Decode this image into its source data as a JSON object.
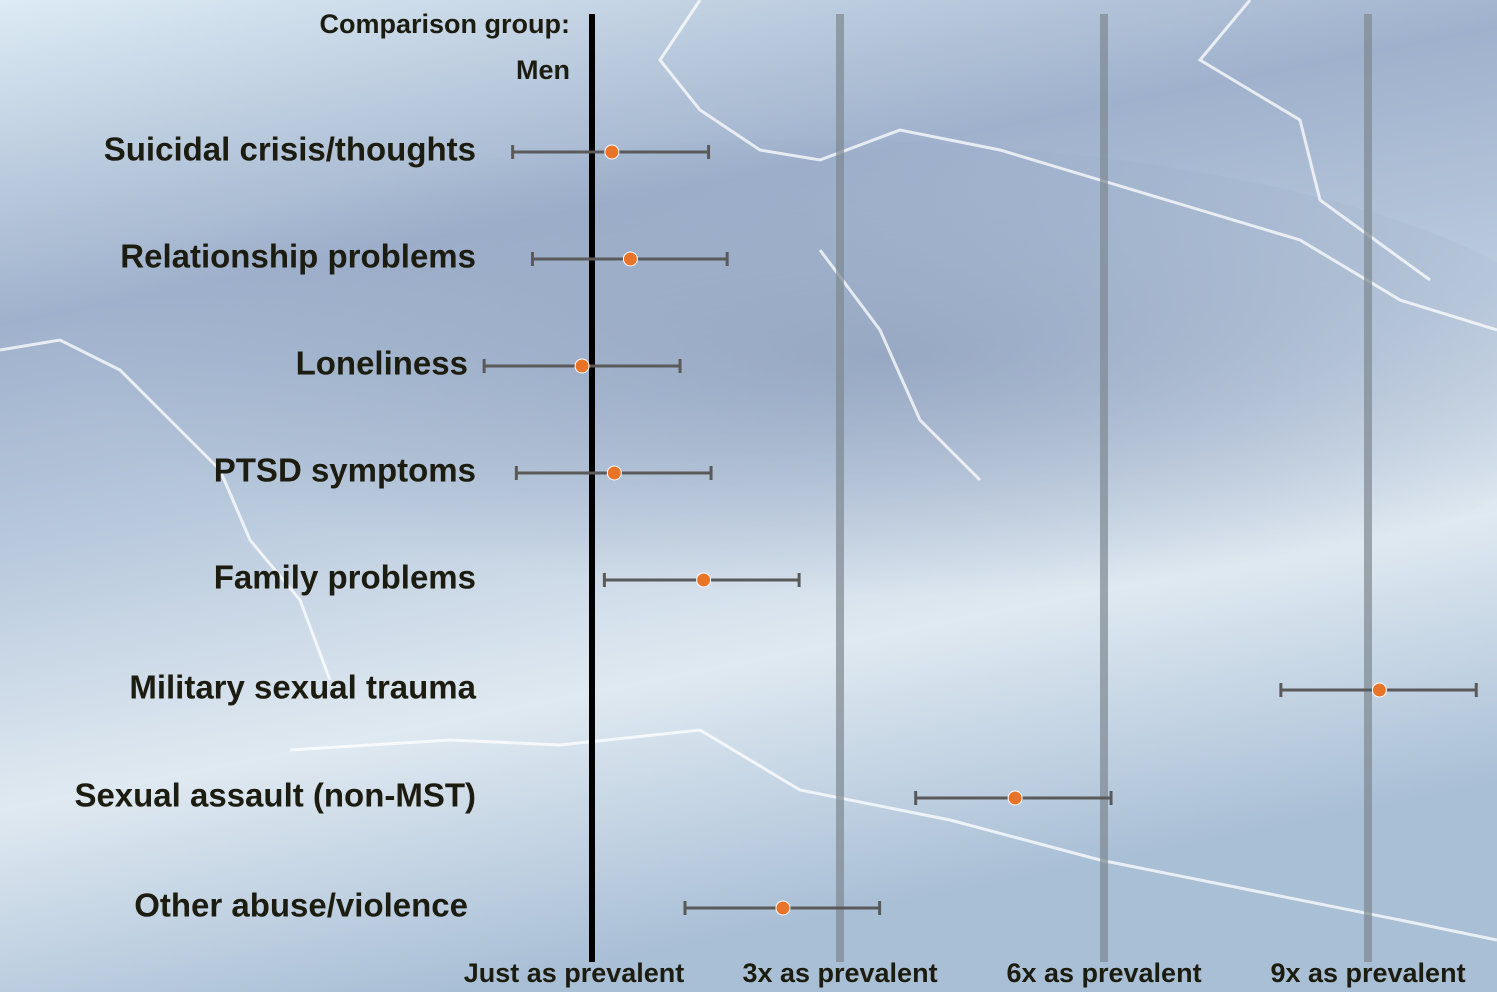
{
  "chart_data": {
    "type": "forest",
    "header": [
      "Comparison group:",
      "Men"
    ],
    "categories": [
      "Suicidal crisis/thoughts",
      "Relationship problems",
      "Loneliness",
      "PTSD symptoms",
      "Family problems",
      "Military sexual trauma",
      "Sexual assault (non-MST)",
      "Other abuse/violence"
    ],
    "values": [
      1.16,
      1.31,
      0.92,
      1.18,
      1.9,
      9.13,
      4.99,
      2.54
    ],
    "lower": [
      0.36,
      0.52,
      0.13,
      0.39,
      1.1,
      8.01,
      3.86,
      1.75
    ],
    "upper": [
      1.94,
      2.09,
      1.71,
      1.96,
      2.67,
      10.23,
      6.08,
      3.45
    ],
    "color": "#e8742a",
    "xlim": [
      0,
      10.4
    ],
    "xticks": [
      {
        "value": 1,
        "label": "Just as prevalent"
      },
      {
        "value": 3,
        "label": "3x as prevalent"
      },
      {
        "value": 6,
        "label": "6x as prevalent"
      },
      {
        "value": 9,
        "label": "9x as prevalent"
      }
    ]
  }
}
